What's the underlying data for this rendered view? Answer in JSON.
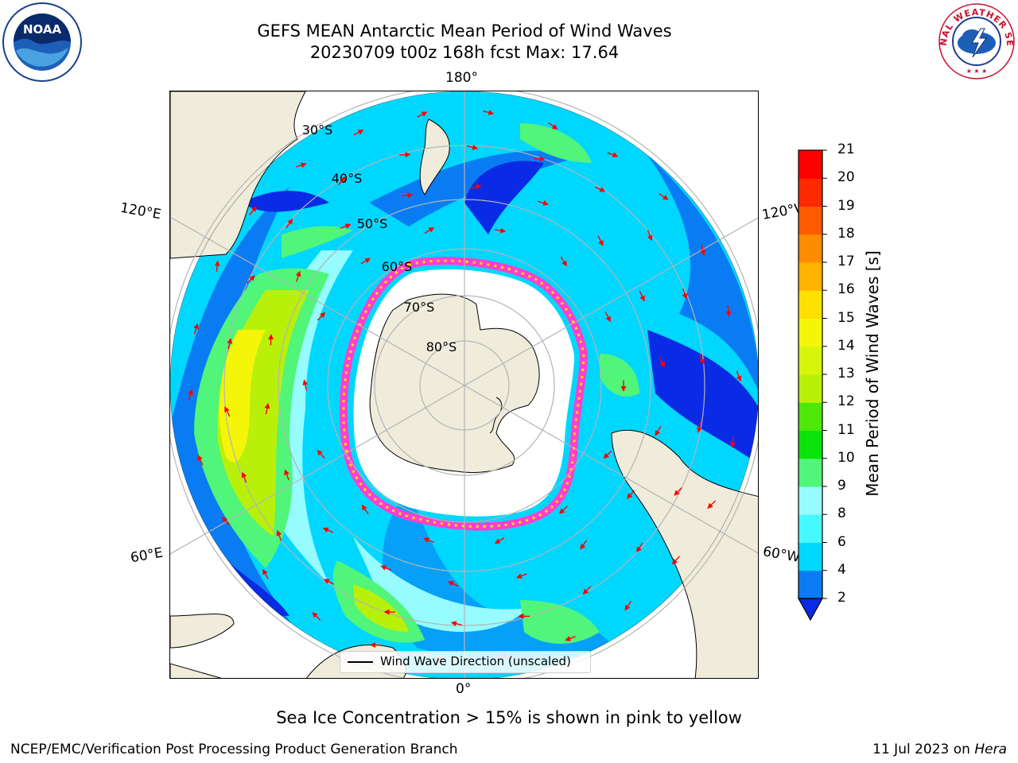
{
  "header": {
    "title_line1": "GEFS MEAN Antarctic Mean Period of Wind Waves",
    "title_line2": "20230709 t00z 168h fcst   Max: 17.64"
  },
  "logos": {
    "left": "noaa-logo",
    "right": "nws-logo",
    "left_text": "NOAA",
    "right_text": "NATIONAL WEATHER SERVICE"
  },
  "map": {
    "projection": "south-polar-stereographic",
    "longitude_labels": [
      "180°",
      "120°E",
      "120°W",
      "60°E",
      "60°W",
      "0°"
    ],
    "latitude_labels": [
      "30°S",
      "40°S",
      "50°S",
      "60°S",
      "70°S",
      "80°S"
    ],
    "legend_label": "Wind Wave Direction (unscaled)",
    "colors": {
      "land": "#efecdc",
      "ocean_low": "#0a2be6",
      "ice_edge": "#ff3fd0",
      "arrows": "#ff0000",
      "grid": "#b4b4b4"
    }
  },
  "colorbar": {
    "label": "Mean Period of Wind Waves [s]",
    "ticks": [
      "2",
      "4",
      "6",
      "8",
      "9",
      "10",
      "11",
      "12",
      "13",
      "14",
      "15",
      "16",
      "17",
      "18",
      "19",
      "20",
      "21"
    ],
    "colors": [
      "#0a2be6",
      "#0a7cf3",
      "#00d7ff",
      "#46f9ff",
      "#96fcff",
      "#50f57a",
      "#0ae40a",
      "#4de80a",
      "#b9f00a",
      "#d6f50a",
      "#f5f50a",
      "#ffe000",
      "#ffb400",
      "#ff8c00",
      "#ff5a00",
      "#ff2a00",
      "#ff0000"
    ]
  },
  "note": "Sea Ice Concentration > 15% is shown in pink to yellow",
  "footer": {
    "left": "NCEP/EMC/Verification Post Processing Product Generation Branch",
    "date": "11 Jul 2023 on",
    "machine": "Hera"
  }
}
